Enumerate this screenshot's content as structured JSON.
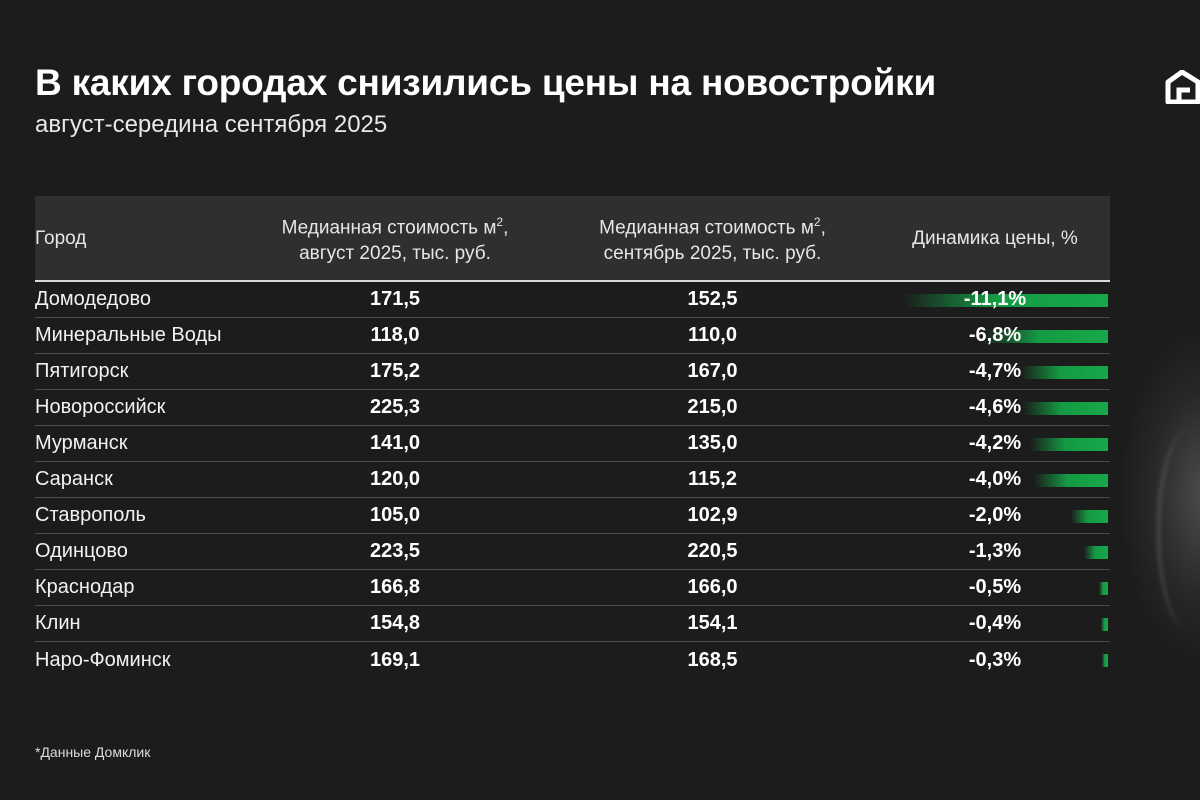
{
  "header": {
    "title": "В каких городах снизились цены на новостройки",
    "subtitle": "август-середина сентября 2025"
  },
  "table": {
    "columns": {
      "city": "Город",
      "aug_line1": "Медианная стоимость м",
      "aug_sup": "2",
      "aug_line1_end": ",",
      "aug_line2": "август 2025, тыс. руб.",
      "sep_line1": "Медианная стоимость м",
      "sep_sup": "2",
      "sep_line1_end": ",",
      "sep_line2": "сентябрь 2025, тыс. руб.",
      "dynamics": "Динамика цены, %"
    }
  },
  "chart_data": {
    "type": "table",
    "bar_color": "#17a84a",
    "rows": [
      {
        "city": "Домодедово",
        "aug": "171,5",
        "sep": "152,5",
        "change_label": "-11,1%",
        "change": -11.1
      },
      {
        "city": "Минеральные Воды",
        "aug": "118,0",
        "sep": "110,0",
        "change_label": "-6,8%",
        "change": -6.8
      },
      {
        "city": "Пятигорск",
        "aug": "175,2",
        "sep": "167,0",
        "change_label": "-4,7%",
        "change": -4.7
      },
      {
        "city": "Новороссийск",
        "aug": "225,3",
        "sep": "215,0",
        "change_label": "-4,6%",
        "change": -4.6
      },
      {
        "city": "Мурманск",
        "aug": "141,0",
        "sep": "135,0",
        "change_label": "-4,2%",
        "change": -4.2
      },
      {
        "city": "Саранск",
        "aug": "120,0",
        "sep": "115,2",
        "change_label": "-4,0%",
        "change": -4.0
      },
      {
        "city": "Ставрополь",
        "aug": "105,0",
        "sep": "102,9",
        "change_label": "-2,0%",
        "change": -2.0
      },
      {
        "city": "Одинцово",
        "aug": "223,5",
        "sep": "220,5",
        "change_label": "-1,3%",
        "change": -1.3
      },
      {
        "city": "Краснодар",
        "aug": "166,8",
        "sep": "166,0",
        "change_label": "-0,5%",
        "change": -0.5
      },
      {
        "city": "Клин",
        "aug": "154,8",
        "sep": "154,1",
        "change_label": "-0,4%",
        "change": -0.4
      },
      {
        "city": "Наро-Фоминск",
        "aug": "169,1",
        "sep": "168,5",
        "change_label": "-0,3%",
        "change": -0.3
      }
    ]
  },
  "footnote": "*Данные Домклик",
  "logo_icon": "house-logo-icon"
}
